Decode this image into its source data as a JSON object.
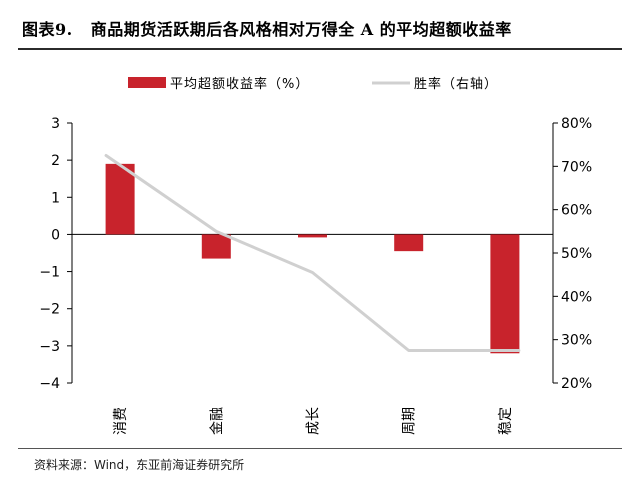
{
  "header": {
    "figure_no": "图表9.",
    "title": "商品期货活跃期后各风格相对万得全 A 的平均超额收益率"
  },
  "source": "资料来源：Wind，东亚前海证券研究所",
  "colors": {
    "bar": "#c8232c",
    "line": "#d0d0d0",
    "axis": "#000000"
  },
  "chart_data": {
    "type": "bar",
    "categories": [
      "消费",
      "金融",
      "成长",
      "周期",
      "稳定"
    ],
    "series": [
      {
        "name": "平均超额收益率（%）",
        "type": "bar",
        "axis": "left",
        "values": [
          1.9,
          -0.65,
          -0.08,
          -0.45,
          -3.2
        ]
      },
      {
        "name": "胜率（右轴）",
        "type": "line",
        "axis": "right",
        "values": [
          72.5,
          55,
          45.5,
          27.5,
          27.5
        ]
      }
    ],
    "y_left": {
      "min": -4,
      "max": 3,
      "ticks": [
        "3",
        "2",
        "1",
        "0",
        "−1",
        "−2",
        "−3",
        "−4"
      ],
      "tick_values": [
        3,
        2,
        1,
        0,
        -1,
        -2,
        -3,
        -4
      ]
    },
    "y_right": {
      "min": 20,
      "max": 80,
      "ticks": [
        "80%",
        "70%",
        "60%",
        "50%",
        "40%",
        "30%",
        "20%"
      ],
      "tick_values": [
        80,
        70,
        60,
        50,
        40,
        30,
        20
      ]
    },
    "legend_position": "top-center",
    "grid": false
  }
}
